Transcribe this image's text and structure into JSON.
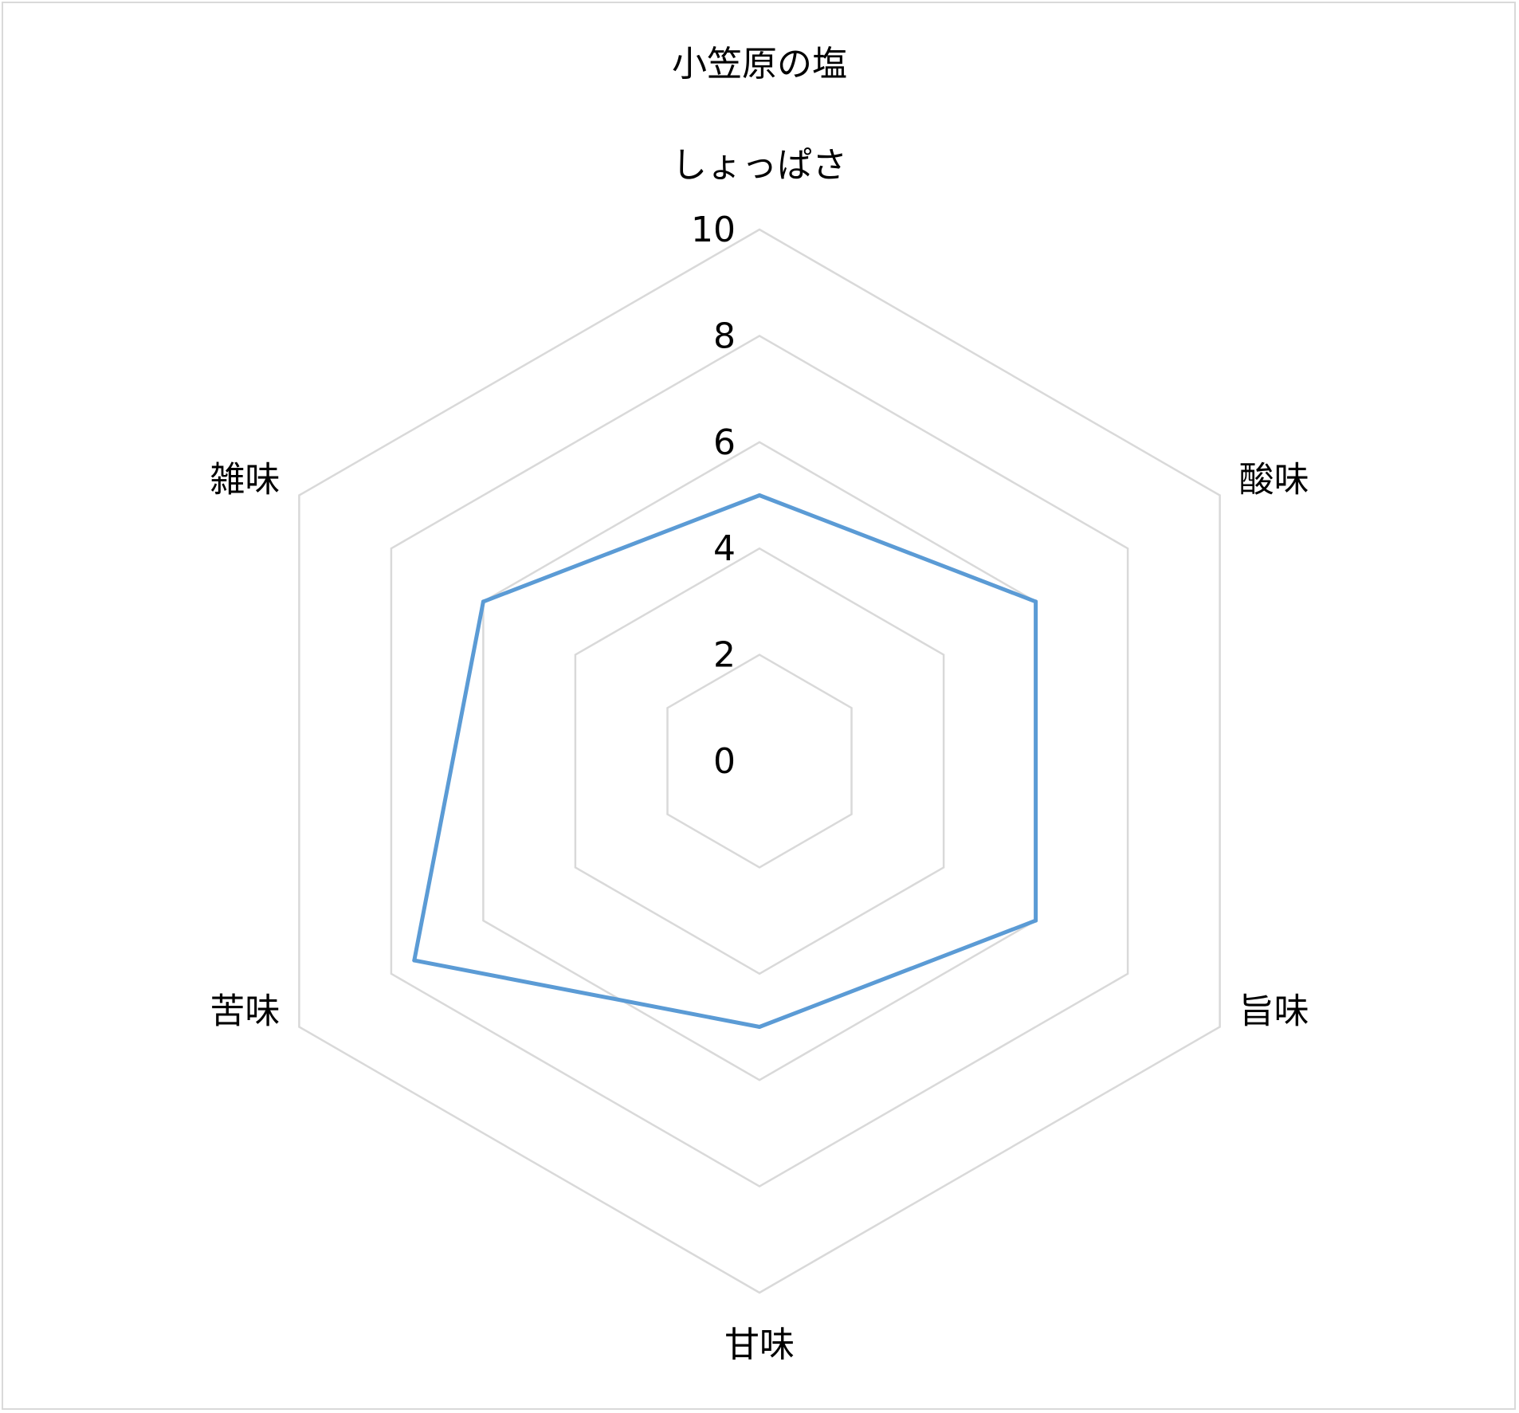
{
  "chart_data": {
    "type": "radar",
    "title": "小笠原の塩",
    "categories": [
      "しょっぱさ",
      "酸味",
      "旨味",
      "甘味",
      "苦味",
      "雑味"
    ],
    "series": [
      {
        "values": [
          5,
          6,
          6,
          5,
          7.5,
          6
        ],
        "color": "#5b9bd5"
      }
    ],
    "rlim": [
      0,
      10
    ],
    "ticks": [
      0,
      2,
      4,
      6,
      8,
      10
    ],
    "grid": true,
    "grid_color": "#d9d9d9"
  }
}
